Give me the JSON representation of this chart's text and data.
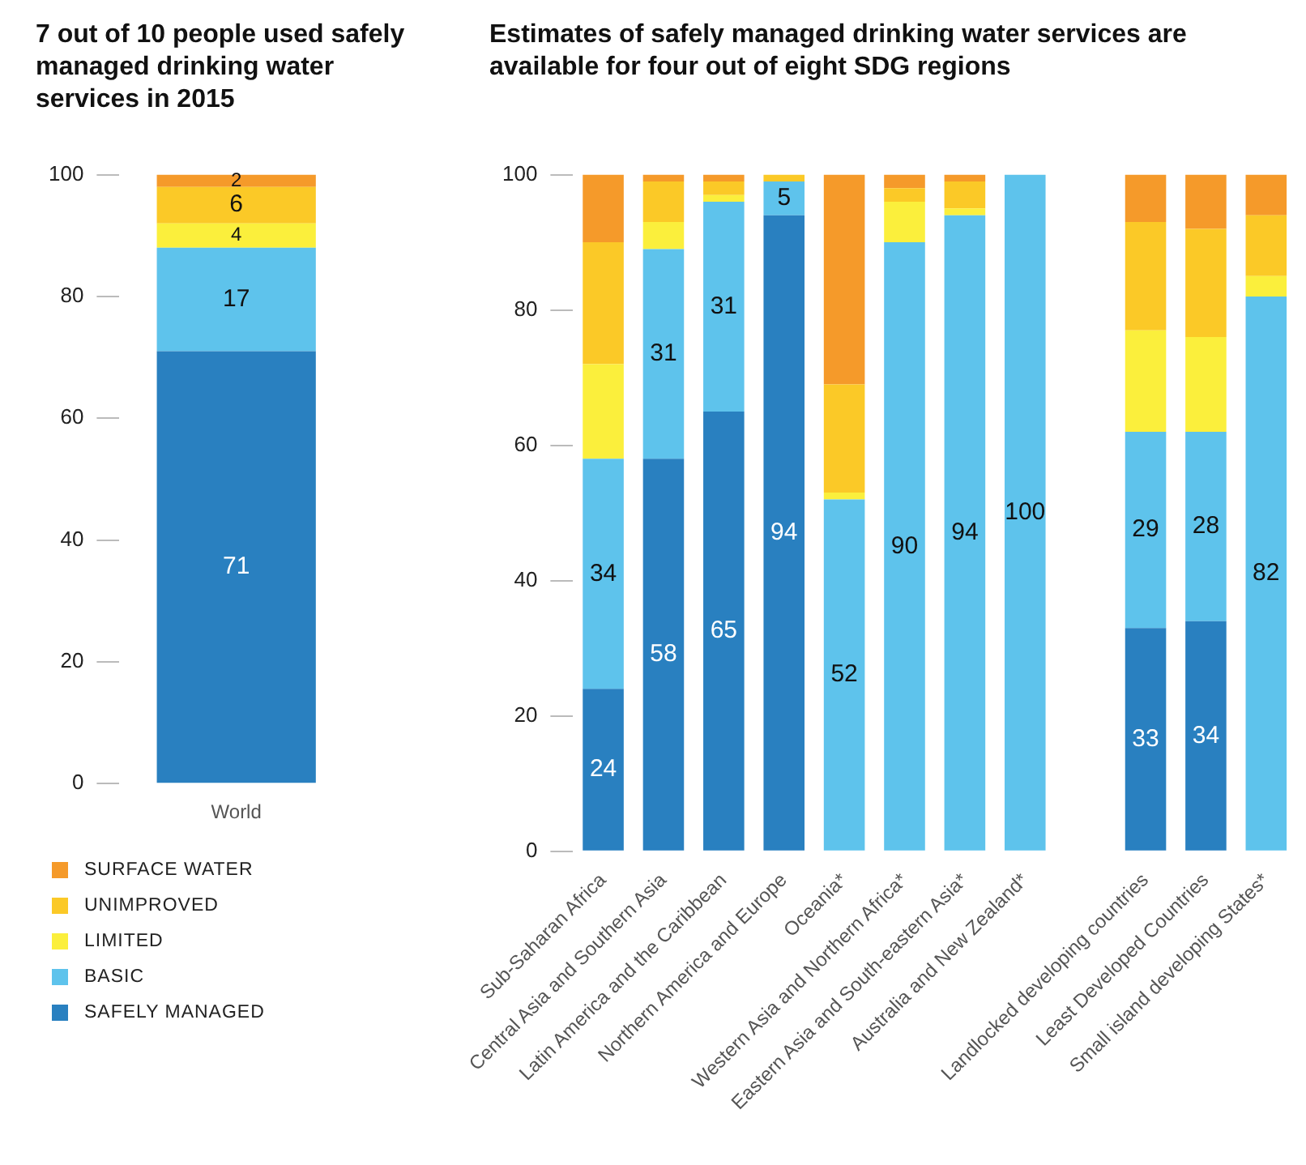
{
  "chart_data": [
    {
      "type": "bar",
      "title": "7 out of 10 people used safely managed drinking water services in 2015",
      "categories": [
        "World"
      ],
      "stacked": true,
      "data_labels": true,
      "legend": "bottom",
      "ylim": [
        0,
        100
      ],
      "yticks": [
        0,
        20,
        40,
        60,
        80,
        100
      ],
      "series": [
        {
          "name": "SAFELY MANAGED",
          "color": "#2980c0",
          "values": [
            71
          ]
        },
        {
          "name": "BASIC",
          "color": "#5ec3ec",
          "values": [
            17
          ]
        },
        {
          "name": "LIMITED",
          "color": "#fbef3c",
          "values": [
            4
          ]
        },
        {
          "name": "UNIMPROVED",
          "color": "#fbc927",
          "values": [
            6
          ]
        },
        {
          "name": "SURFACE WATER",
          "color": "#f59a2a",
          "values": [
            2
          ]
        }
      ]
    },
    {
      "type": "bar",
      "title": "Estimates of safely managed drinking water services are available for four out of eight SDG regions",
      "categories": [
        "Sub-Saharan Africa",
        "Central Asia and Southern Asia",
        "Latin America and the Caribbean",
        "Northern America and Europe",
        "Oceania*",
        "Western Asia and Northern Africa*",
        "Eastern Asia and South-eastern Asia*",
        "Australia and New Zealand*",
        null,
        "Landlocked developing countries",
        "Least Developed Countries",
        "Small island developing States*"
      ],
      "stacked": true,
      "ylim": [
        0,
        100
      ],
      "yticks": [
        0,
        20,
        40,
        60,
        80,
        100
      ],
      "series": [
        {
          "color": "#2980c0",
          "values": [
            24,
            58,
            65,
            94,
            null,
            null,
            null,
            null,
            null,
            33,
            34,
            null
          ],
          "value_labels": [
            "24",
            "58",
            "65",
            "94",
            null,
            null,
            null,
            null,
            null,
            "33",
            "34",
            null
          ]
        },
        {
          "color": "#5ec3ec",
          "values": [
            34,
            31,
            31,
            5,
            52,
            90,
            94,
            100,
            null,
            29,
            28,
            82
          ],
          "value_labels": [
            "34",
            "31",
            "31",
            "5",
            "52",
            "90",
            "94",
            "100",
            null,
            "29",
            "28",
            "82"
          ]
        },
        {
          "color": "#fbef3c",
          "values": [
            14,
            4,
            1,
            0,
            1,
            6,
            1,
            null,
            null,
            15,
            14,
            3
          ]
        },
        {
          "color": "#fbc927",
          "values": [
            18,
            6,
            2,
            1,
            16,
            2,
            4,
            null,
            null,
            16,
            16,
            9
          ]
        },
        {
          "color": "#f59a2a",
          "values": [
            10,
            1,
            1,
            null,
            31,
            2,
            1,
            null,
            null,
            7,
            8,
            6
          ]
        }
      ]
    }
  ]
}
